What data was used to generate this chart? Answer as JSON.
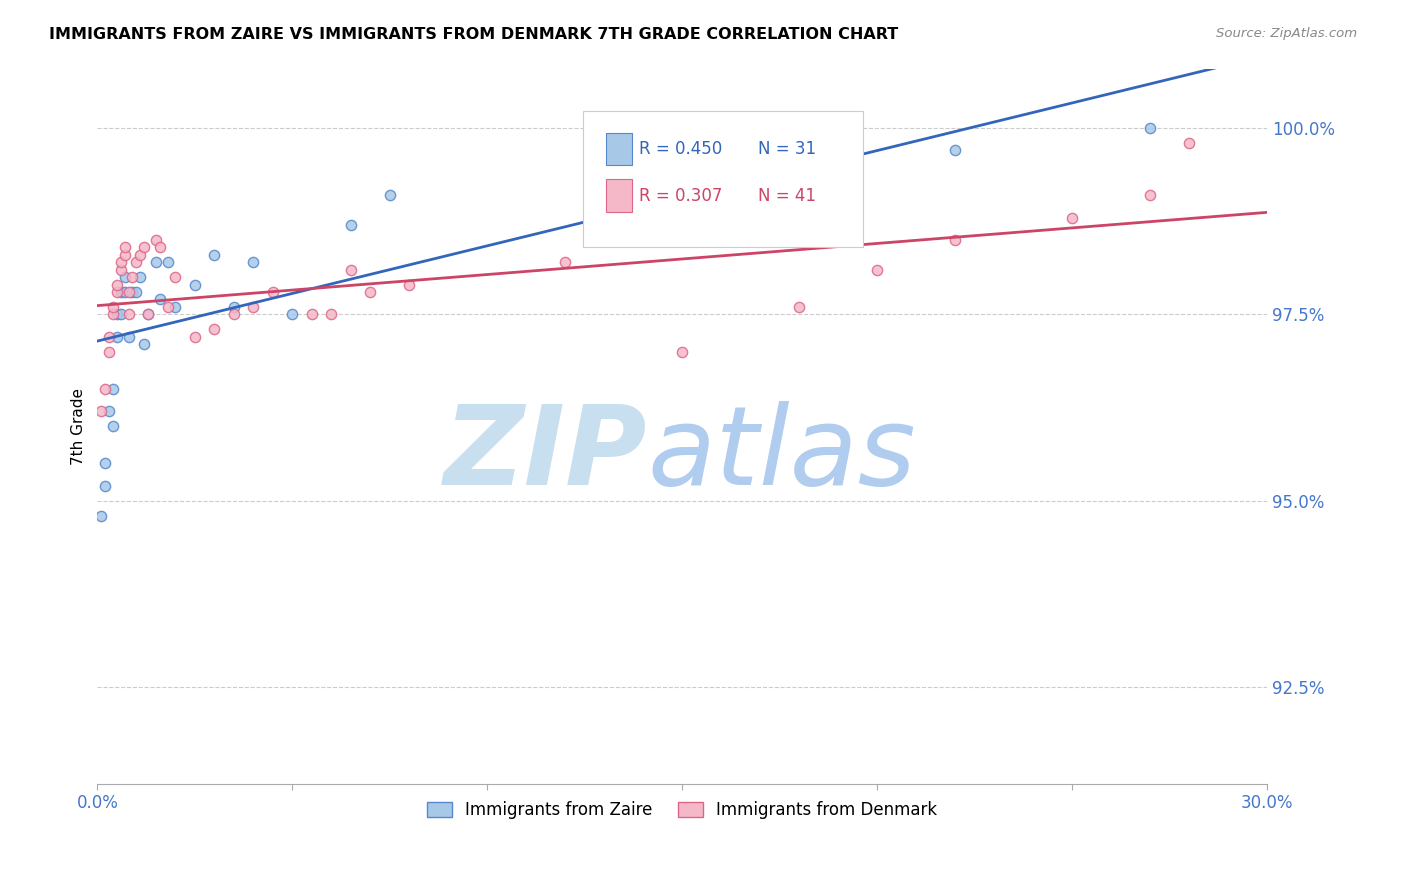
{
  "title": "IMMIGRANTS FROM ZAIRE VS IMMIGRANTS FROM DENMARK 7TH GRADE CORRELATION CHART",
  "source": "Source: ZipAtlas.com",
  "ylabel": "7th Grade",
  "yaxis_labels": [
    "100.0%",
    "97.5%",
    "95.0%",
    "92.5%"
  ],
  "yaxis_values": [
    1.0,
    0.975,
    0.95,
    0.925
  ],
  "zaire_color": "#a8c8e8",
  "denmark_color": "#f4b8c8",
  "zaire_edge_color": "#5588cc",
  "denmark_edge_color": "#dd6688",
  "zaire_line_color": "#3366bb",
  "denmark_line_color": "#cc4466",
  "tick_color": "#4477cc",
  "watermark_zip_color": "#c8dff0",
  "watermark_atlas_color": "#b0ccee",
  "legend_R_zaire": "R = 0.450",
  "legend_N_zaire": "N = 31",
  "legend_R_denmark": "R = 0.307",
  "legend_N_denmark": "N = 41",
  "zaire_x": [
    0.001,
    0.002,
    0.002,
    0.003,
    0.004,
    0.004,
    0.005,
    0.005,
    0.006,
    0.006,
    0.007,
    0.007,
    0.008,
    0.009,
    0.01,
    0.011,
    0.012,
    0.013,
    0.015,
    0.016,
    0.018,
    0.02,
    0.025,
    0.03,
    0.035,
    0.04,
    0.05,
    0.065,
    0.075,
    0.22,
    0.27
  ],
  "zaire_y": [
    0.948,
    0.952,
    0.955,
    0.962,
    0.96,
    0.965,
    0.972,
    0.975,
    0.975,
    0.978,
    0.978,
    0.98,
    0.972,
    0.978,
    0.978,
    0.98,
    0.971,
    0.975,
    0.982,
    0.977,
    0.982,
    0.976,
    0.979,
    0.983,
    0.976,
    0.982,
    0.975,
    0.987,
    0.991,
    0.997,
    1.0
  ],
  "denmark_x": [
    0.001,
    0.002,
    0.003,
    0.003,
    0.004,
    0.004,
    0.005,
    0.005,
    0.006,
    0.006,
    0.007,
    0.007,
    0.008,
    0.008,
    0.009,
    0.01,
    0.011,
    0.012,
    0.013,
    0.015,
    0.016,
    0.018,
    0.02,
    0.025,
    0.03,
    0.035,
    0.04,
    0.045,
    0.055,
    0.06,
    0.065,
    0.07,
    0.08,
    0.12,
    0.15,
    0.18,
    0.2,
    0.22,
    0.25,
    0.27,
    0.28
  ],
  "denmark_y": [
    0.962,
    0.965,
    0.97,
    0.972,
    0.975,
    0.976,
    0.978,
    0.979,
    0.981,
    0.982,
    0.983,
    0.984,
    0.975,
    0.978,
    0.98,
    0.982,
    0.983,
    0.984,
    0.975,
    0.985,
    0.984,
    0.976,
    0.98,
    0.972,
    0.973,
    0.975,
    0.976,
    0.978,
    0.975,
    0.975,
    0.981,
    0.978,
    0.979,
    0.982,
    0.97,
    0.976,
    0.981,
    0.985,
    0.988,
    0.991,
    0.998
  ]
}
